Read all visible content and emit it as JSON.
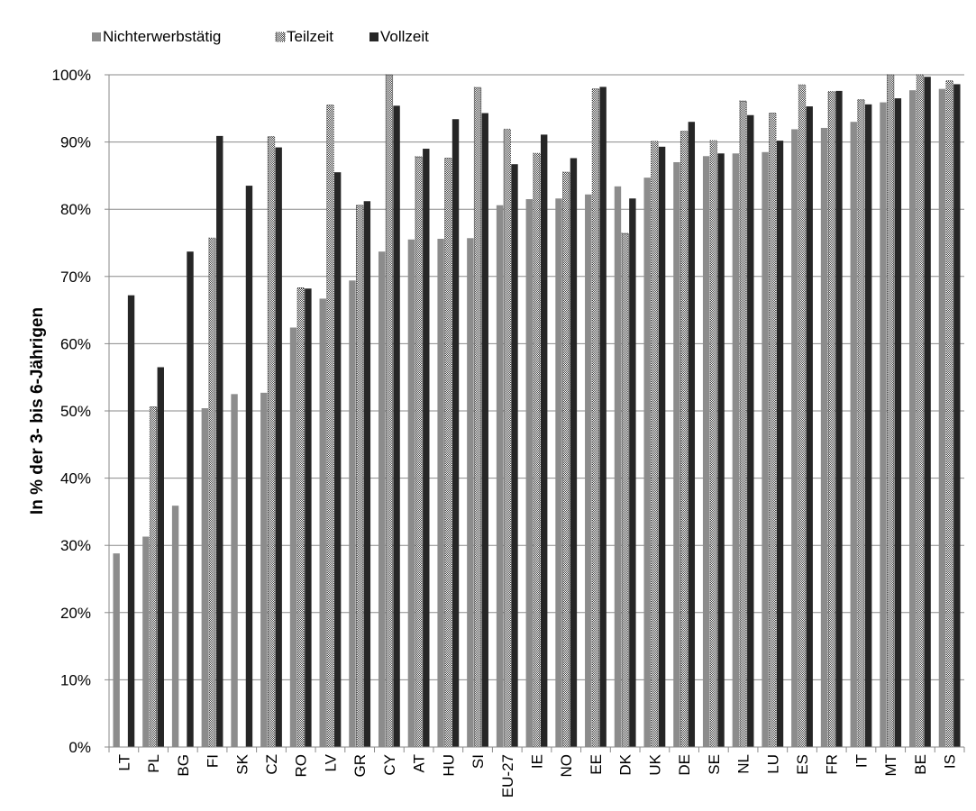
{
  "chart_data": {
    "type": "bar",
    "title": "",
    "xlabel": "",
    "ylabel": "In % der 3- bis 6-Jährigen",
    "ylim": [
      0,
      100
    ],
    "yticks": [
      "0%",
      "10%",
      "20%",
      "30%",
      "40%",
      "50%",
      "60%",
      "70%",
      "80%",
      "90%",
      "100%"
    ],
    "grid": true,
    "legend_position": "top-left",
    "categories": [
      "LT",
      "PL",
      "BG",
      "FI",
      "SK",
      "CZ",
      "RO",
      "LV",
      "GR",
      "CY",
      "AT",
      "HU",
      "SI",
      "EU-27",
      "IE",
      "NO",
      "EE",
      "DK",
      "UK",
      "DE",
      "SE",
      "NL",
      "LU",
      "ES",
      "FR",
      "IT",
      "MT",
      "BE",
      "IS"
    ],
    "series": [
      {
        "name": "Nichterwerbstätig",
        "color": "#8c8c8c",
        "pattern": "solid",
        "values": [
          28.8,
          31.3,
          35.9,
          50.4,
          52.5,
          52.7,
          62.4,
          66.7,
          69.4,
          73.7,
          75.5,
          75.6,
          75.7,
          80.6,
          81.5,
          81.6,
          82.2,
          83.4,
          84.7,
          87.0,
          87.9,
          88.3,
          88.5,
          91.9,
          92.1,
          93.0,
          95.9,
          97.7,
          97.9
        ]
      },
      {
        "name": "Teilzeit",
        "color": "#ffffff",
        "pattern": "dotted",
        "values": [
          null,
          50.6,
          null,
          75.7,
          null,
          90.8,
          68.3,
          95.5,
          80.6,
          100.0,
          87.8,
          87.6,
          98.1,
          91.9,
          88.3,
          85.5,
          97.9,
          76.4,
          90.1,
          91.6,
          90.2,
          96.1,
          94.3,
          98.5,
          97.5,
          96.3,
          100.0,
          100.0,
          99.1
        ]
      },
      {
        "name": "Vollzeit",
        "color": "#262626",
        "pattern": "solid",
        "values": [
          67.2,
          56.5,
          73.7,
          90.9,
          83.5,
          89.2,
          68.2,
          85.5,
          81.2,
          95.4,
          89.0,
          93.4,
          94.3,
          86.7,
          91.1,
          87.6,
          98.2,
          81.6,
          89.3,
          93.0,
          88.3,
          94.0,
          90.2,
          95.3,
          97.6,
          95.6,
          96.5,
          99.7,
          98.6
        ]
      }
    ]
  }
}
